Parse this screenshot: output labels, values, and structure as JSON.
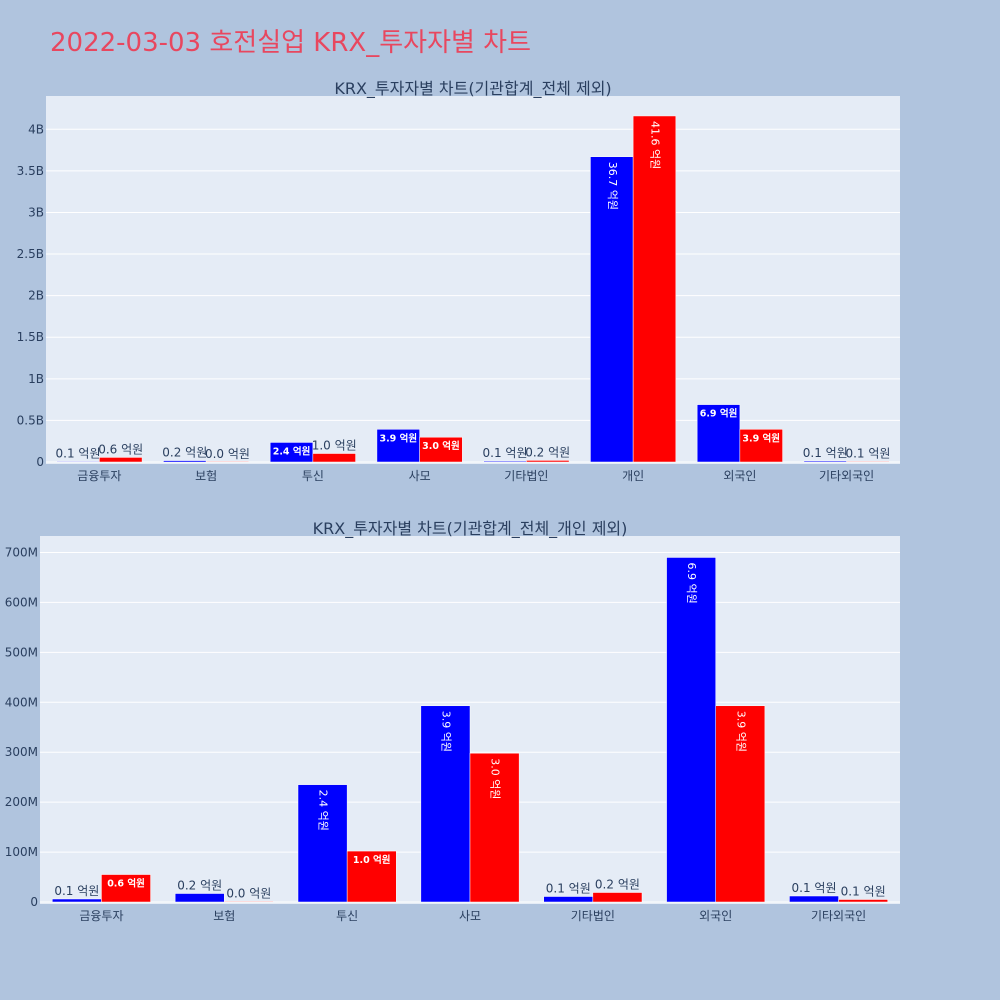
{
  "page": {
    "title": "2022-03-03 호전실업 KRX_투자자별 차트"
  },
  "colors": {
    "buy": "#0000ff",
    "sell": "#ff0000",
    "plot_bg": "#e5ecf6",
    "paper_bg": "#b0c4de",
    "title": "#e8475f"
  },
  "chart_data": [
    {
      "type": "bar",
      "title": "KRX_투자자별 차트(기관합계_전체 제외)",
      "categories": [
        "금융투자",
        "보험",
        "투신",
        "사모",
        "기타법인",
        "개인",
        "외국인",
        "기타외국인"
      ],
      "ylim": [
        0,
        4400000000
      ],
      "ytick_values": [
        0,
        500000000,
        1000000000,
        1500000000,
        2000000000,
        2500000000,
        3000000000,
        3500000000,
        4000000000
      ],
      "ytick_labels": [
        "0",
        "0.5B",
        "1B",
        "1.5B",
        "2B",
        "2.5B",
        "3B",
        "3.5B",
        "4B"
      ],
      "grid": true,
      "series": [
        {
          "color": "#0000ff",
          "values": [
            6000000,
            17000000,
            235000000,
            393000000,
            11000000,
            3670000000,
            690000000,
            12000000
          ],
          "labels": [
            "0.1 억원",
            "0.2 억원",
            "2.4 억원",
            "3.9 억원",
            "0.1 억원",
            "36.7 억원",
            "6.9 억원",
            "0.1 억원"
          ]
        },
        {
          "color": "#ff0000",
          "values": [
            55000000,
            1000000,
            102000000,
            298000000,
            19000000,
            4160000000,
            393000000,
            5000000
          ],
          "labels": [
            "0.6 억원",
            "0.0 억원",
            "1.0 억원",
            "3.0 억원",
            "0.2 억원",
            "41.6 억원",
            "3.9 억원",
            "0.1 억원"
          ]
        }
      ]
    },
    {
      "type": "bar",
      "title": "KRX_투자자별 차트(기관합계_전체_개인 제외)",
      "categories": [
        "금융투자",
        "보험",
        "투신",
        "사모",
        "기타법인",
        "외국인",
        "기타외국인"
      ],
      "ylim": [
        0,
        733000000
      ],
      "ytick_values": [
        0,
        100000000,
        200000000,
        300000000,
        400000000,
        500000000,
        600000000,
        700000000
      ],
      "ytick_labels": [
        "0",
        "100M",
        "200M",
        "300M",
        "400M",
        "500M",
        "600M",
        "700M"
      ],
      "grid": true,
      "series": [
        {
          "color": "#0000ff",
          "values": [
            6000000,
            17000000,
            235000000,
            393000000,
            11000000,
            690000000,
            12000000
          ],
          "labels": [
            "0.1 억원",
            "0.2 억원",
            "2.4 억원",
            "3.9 억원",
            "0.1 억원",
            "6.9 억원",
            "0.1 억원"
          ]
        },
        {
          "color": "#ff0000",
          "values": [
            55000000,
            1000000,
            102000000,
            298000000,
            19000000,
            393000000,
            5000000
          ],
          "labels": [
            "0.6 억원",
            "0.0 억원",
            "1.0 억원",
            "3.0 억원",
            "0.2 억원",
            "3.9 억원",
            "0.1 억원"
          ]
        }
      ]
    }
  ]
}
